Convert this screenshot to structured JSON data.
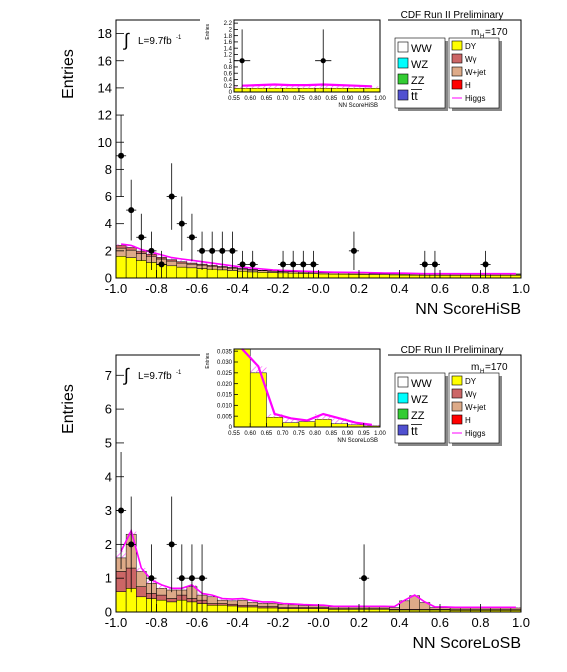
{
  "colors": {
    "WW": "#ffffff",
    "WZ": "#00ffff",
    "ZZ": "#33cc33",
    "ttbar": "#5050d0",
    "DY": "#ffff00",
    "Wgamma": "#cc6666",
    "Wjet": "#ddaa88",
    "H": "#ff0000",
    "Higgs": "#ff00ff",
    "data": "#000000"
  },
  "chart_data": [
    {
      "type": "bar",
      "id": "hisb",
      "xlabel": "NN ScoreHiSB",
      "ylabel": "Entries",
      "xlim": [
        -1.0,
        1.0
      ],
      "ylim": [
        0,
        19
      ],
      "yticks": [
        "0",
        "2",
        "4",
        "6",
        "8",
        "10",
        "12",
        "14",
        "16",
        "18"
      ],
      "xticks": [
        "-1.0",
        "-0.8",
        "-0.6",
        "-0.4",
        "-0.2",
        "-0.0",
        "0.2",
        "0.4",
        "0.6",
        "0.8",
        "1.0"
      ],
      "bin_edges": [
        -1.0,
        -0.95,
        -0.9,
        -0.85,
        -0.8,
        -0.75,
        -0.7,
        -0.65,
        -0.6,
        -0.55,
        -0.5,
        -0.45,
        -0.4,
        -0.35,
        -0.3,
        -0.25,
        -0.2,
        -0.15,
        -0.1,
        -0.05,
        0.0,
        0.05,
        0.1,
        0.15,
        0.2,
        0.25,
        0.3,
        0.35,
        0.4,
        0.45,
        0.5,
        0.55,
        0.6,
        0.65,
        0.7,
        0.75,
        0.8,
        0.85,
        0.9,
        0.95,
        1.0
      ],
      "stack": [
        {
          "name": "DY",
          "color_key": "DY",
          "values": [
            1.6,
            1.5,
            1.3,
            1.15,
            1.0,
            0.9,
            0.8,
            0.75,
            0.7,
            0.65,
            0.6,
            0.55,
            0.5,
            0.45,
            0.42,
            0.4,
            0.38,
            0.36,
            0.34,
            0.32,
            0.3,
            0.29,
            0.28,
            0.27,
            0.26,
            0.25,
            0.24,
            0.23,
            0.22,
            0.21,
            0.2,
            0.2,
            0.2,
            0.2,
            0.2,
            0.2,
            0.2,
            0.2,
            0.2,
            0.2
          ]
        },
        {
          "name": "Wjet",
          "color_key": "Wjet",
          "values": [
            0.6,
            0.55,
            0.5,
            0.45,
            0.4,
            0.35,
            0.3,
            0.27,
            0.25,
            0.22,
            0.2,
            0.18,
            0.16,
            0.14,
            0.12,
            0.1,
            0.1,
            0.1,
            0.1,
            0.1,
            0.1,
            0.1,
            0.1,
            0.1,
            0.1,
            0.08,
            0.08,
            0.08,
            0.08,
            0.08,
            0.07,
            0.07,
            0.07,
            0.07,
            0.07,
            0.07,
            0.07,
            0.07,
            0.07,
            0.07
          ]
        },
        {
          "name": "Wgamma",
          "color_key": "Wgamma",
          "values": [
            0.2,
            0.2,
            0.18,
            0.15,
            0.12,
            0.1,
            0.1,
            0.08,
            0.07,
            0.06,
            0.05,
            0.05,
            0.04,
            0.04,
            0.03,
            0.03,
            0.03,
            0.03,
            0.03,
            0.03,
            0.03,
            0.03,
            0.03,
            0.03,
            0.03,
            0.03,
            0.03,
            0.03,
            0.03,
            0.03,
            0.03,
            0.03,
            0.03,
            0.03,
            0.03,
            0.03,
            0.03,
            0.03,
            0.03,
            0.03
          ]
        }
      ],
      "higgs": [
        2.5,
        2.4,
        2.1,
        1.9,
        1.7,
        1.5,
        1.4,
        1.3,
        1.2,
        1.1,
        1.0,
        0.9,
        0.8,
        0.72,
        0.66,
        0.6,
        0.56,
        0.53,
        0.5,
        0.47,
        0.45,
        0.43,
        0.42,
        0.41,
        0.4,
        0.38,
        0.37,
        0.36,
        0.35,
        0.34,
        0.32,
        0.32,
        0.32,
        0.32,
        0.32,
        0.32,
        0.32,
        0.32,
        0.32,
        0.32
      ],
      "points": [
        {
          "x": -0.975,
          "y": 9
        },
        {
          "x": -0.925,
          "y": 5
        },
        {
          "x": -0.875,
          "y": 3
        },
        {
          "x": -0.825,
          "y": 2
        },
        {
          "x": -0.775,
          "y": 1
        },
        {
          "x": -0.725,
          "y": 6
        },
        {
          "x": -0.675,
          "y": 4
        },
        {
          "x": -0.625,
          "y": 3
        },
        {
          "x": -0.575,
          "y": 2
        },
        {
          "x": -0.525,
          "y": 2
        },
        {
          "x": -0.475,
          "y": 2
        },
        {
          "x": -0.425,
          "y": 2
        },
        {
          "x": -0.375,
          "y": 1
        },
        {
          "x": -0.325,
          "y": 1
        },
        {
          "x": -0.175,
          "y": 1
        },
        {
          "x": -0.125,
          "y": 1
        },
        {
          "x": -0.075,
          "y": 1
        },
        {
          "x": -0.025,
          "y": 1
        },
        {
          "x": 0.175,
          "y": 2
        },
        {
          "x": 0.525,
          "y": 1
        },
        {
          "x": 0.575,
          "y": 1
        },
        {
          "x": 0.825,
          "y": 1
        }
      ],
      "run_label": "CDF Run II Preliminary",
      "lumi_label": "L=9.7fb",
      "lumi_sup": "-1",
      "mass_label": "m",
      "mass_sub": "H",
      "mass_value": "=170",
      "inset": {
        "xlabel": "NN ScoreHiSB",
        "ylabel": "Entries",
        "xlim": [
          0.55,
          1.0
        ],
        "ylim": [
          0,
          2.3
        ],
        "yticks": [
          "0",
          "0.2",
          "0.4",
          "0.6",
          "0.8",
          "1",
          "1.2",
          "1.4",
          "1.6",
          "1.8",
          "2",
          "2.2"
        ],
        "xticks": [
          "0.55",
          "0.60",
          "0.65",
          "0.70",
          "0.75",
          "0.80",
          "0.85",
          "0.90",
          "0.95",
          "1.00"
        ],
        "bin_edges": [
          0.55,
          0.6,
          0.65,
          0.7,
          0.75,
          0.8,
          0.85,
          0.9,
          0.95,
          1.0
        ],
        "stack_total": [
          0.12,
          0.12,
          0.12,
          0.12,
          0.12,
          0.12,
          0.12,
          0.12,
          0.12
        ],
        "higgs": [
          0.2,
          0.22,
          0.24,
          0.22,
          0.22,
          0.24,
          0.22,
          0.2,
          0.18
        ],
        "points": [
          {
            "x": 0.575,
            "y": 1.0
          },
          {
            "x": 0.825,
            "y": 1.0
          }
        ]
      }
    },
    {
      "type": "bar",
      "id": "losb",
      "xlabel": "NN ScoreLoSB",
      "ylabel": "Entries",
      "xlim": [
        -1.0,
        1.0
      ],
      "ylim": [
        0,
        7.6
      ],
      "yticks": [
        "0",
        "1",
        "2",
        "3",
        "4",
        "5",
        "6",
        "7"
      ],
      "xticks": [
        "-1.0",
        "-0.8",
        "-0.6",
        "-0.4",
        "-0.2",
        "-0.0",
        "0.2",
        "0.4",
        "0.6",
        "0.8",
        "1.0"
      ],
      "bin_edges": [
        -1.0,
        -0.95,
        -0.9,
        -0.85,
        -0.8,
        -0.75,
        -0.7,
        -0.65,
        -0.6,
        -0.55,
        -0.5,
        -0.45,
        -0.4,
        -0.35,
        -0.3,
        -0.25,
        -0.2,
        -0.15,
        -0.1,
        -0.05,
        0.0,
        0.05,
        0.1,
        0.15,
        0.2,
        0.25,
        0.3,
        0.35,
        0.4,
        0.45,
        0.5,
        0.55,
        0.6,
        0.65,
        0.7,
        0.75,
        0.8,
        0.85,
        0.9,
        0.95,
        1.0
      ],
      "stack": [
        {
          "name": "DY",
          "color_key": "DY",
          "values": [
            0.6,
            0.7,
            0.45,
            0.4,
            0.35,
            0.3,
            0.35,
            0.3,
            0.25,
            0.2,
            0.2,
            0.18,
            0.15,
            0.15,
            0.12,
            0.12,
            0.1,
            0.1,
            0.1,
            0.1,
            0.1,
            0.08,
            0.08,
            0.08,
            0.08,
            0.08,
            0.08,
            0.06,
            0.06,
            0.06,
            0.06,
            0.06,
            0.06,
            0.05,
            0.05,
            0.05,
            0.05,
            0.05,
            0.05,
            0.05
          ]
        },
        {
          "name": "Wgamma",
          "color_key": "Wgamma",
          "values": [
            0.6,
            0.6,
            0.3,
            0.15,
            0.15,
            0.1,
            0.15,
            0.1,
            0.1,
            0.05,
            0.05,
            0.05,
            0.05,
            0.04,
            0.04,
            0.04,
            0.03,
            0.03,
            0.03,
            0.03,
            0.03,
            0.02,
            0.02,
            0.02,
            0.02,
            0.02,
            0.02,
            0.02,
            0.02,
            0.02,
            0.02,
            0.02,
            0.02,
            0.02,
            0.02,
            0.02,
            0.02,
            0.02,
            0.02,
            0.02
          ]
        },
        {
          "name": "Wjet",
          "color_key": "Wjet",
          "values": [
            0.4,
            1.0,
            0.45,
            0.3,
            0.2,
            0.25,
            0.15,
            0.35,
            0.15,
            0.2,
            0.1,
            0.1,
            0.15,
            0.1,
            0.1,
            0.1,
            0.1,
            0.08,
            0.06,
            0.06,
            0.05,
            0.05,
            0.05,
            0.05,
            0.05,
            0.05,
            0.05,
            0.05,
            0.25,
            0.4,
            0.2,
            0.05,
            0.05,
            0.05,
            0.05,
            0.05,
            0.05,
            0.05,
            0.05,
            0.05
          ]
        }
      ],
      "higgs": [
        1.8,
        2.4,
        1.3,
        0.95,
        0.8,
        0.7,
        0.7,
        0.8,
        0.55,
        0.5,
        0.4,
        0.38,
        0.4,
        0.34,
        0.3,
        0.3,
        0.25,
        0.24,
        0.22,
        0.21,
        0.2,
        0.17,
        0.17,
        0.17,
        0.17,
        0.17,
        0.17,
        0.16,
        0.35,
        0.5,
        0.3,
        0.15,
        0.15,
        0.14,
        0.14,
        0.14,
        0.14,
        0.14,
        0.14,
        0.14
      ],
      "points": [
        {
          "x": -0.975,
          "y": 3
        },
        {
          "x": -0.925,
          "y": 2
        },
        {
          "x": -0.825,
          "y": 1
        },
        {
          "x": -0.725,
          "y": 2
        },
        {
          "x": -0.675,
          "y": 1
        },
        {
          "x": -0.625,
          "y": 1
        },
        {
          "x": -0.575,
          "y": 1
        },
        {
          "x": 0.225,
          "y": 1
        }
      ],
      "run_label": "CDF Run II Preliminary",
      "lumi_label": "L=9.7fb",
      "lumi_sup": "-1",
      "mass_label": "m",
      "mass_sub": "H",
      "mass_value": "=170",
      "inset": {
        "xlabel": "NN ScoreLoSB",
        "ylabel": "Entries",
        "xlim": [
          0.55,
          1.0
        ],
        "ylim": [
          0,
          0.036
        ],
        "yticks": [
          "0",
          "0.005",
          "0.010",
          "0.015",
          "0.020",
          "0.025",
          "0.030",
          "0.035"
        ],
        "xticks": [
          "0.55",
          "0.60",
          "0.65",
          "0.70",
          "0.75",
          "0.80",
          "0.85",
          "0.90",
          "0.95",
          "1.00"
        ],
        "bin_edges": [
          0.55,
          0.6,
          0.65,
          0.7,
          0.75,
          0.8,
          0.85,
          0.9,
          0.95,
          1.0
        ],
        "stack_total": [
          0.036,
          0.025,
          0.0045,
          0.002,
          0.0025,
          0.0035,
          0.0015,
          0.001,
          0.0005
        ],
        "higgs": [
          0.038,
          0.028,
          0.006,
          0.004,
          0.003,
          0.006,
          0.004,
          0.002,
          0.001
        ],
        "points": []
      }
    }
  ],
  "legend": [
    {
      "label": "WW",
      "color_key": "WW"
    },
    {
      "label": "WZ",
      "color_key": "WZ"
    },
    {
      "label": "ZZ",
      "color_key": "ZZ"
    },
    {
      "label": "tt",
      "color_key": "ttbar"
    }
  ],
  "legend2": [
    {
      "label": "DY",
      "color_key": "DY"
    },
    {
      "label": "Wγ",
      "color_key": "Wgamma"
    },
    {
      "label": "W+jet",
      "color_key": "Wjet"
    },
    {
      "label": "H",
      "color_key": "H"
    },
    {
      "label": "Higgs",
      "color_key": "Higgs"
    }
  ]
}
